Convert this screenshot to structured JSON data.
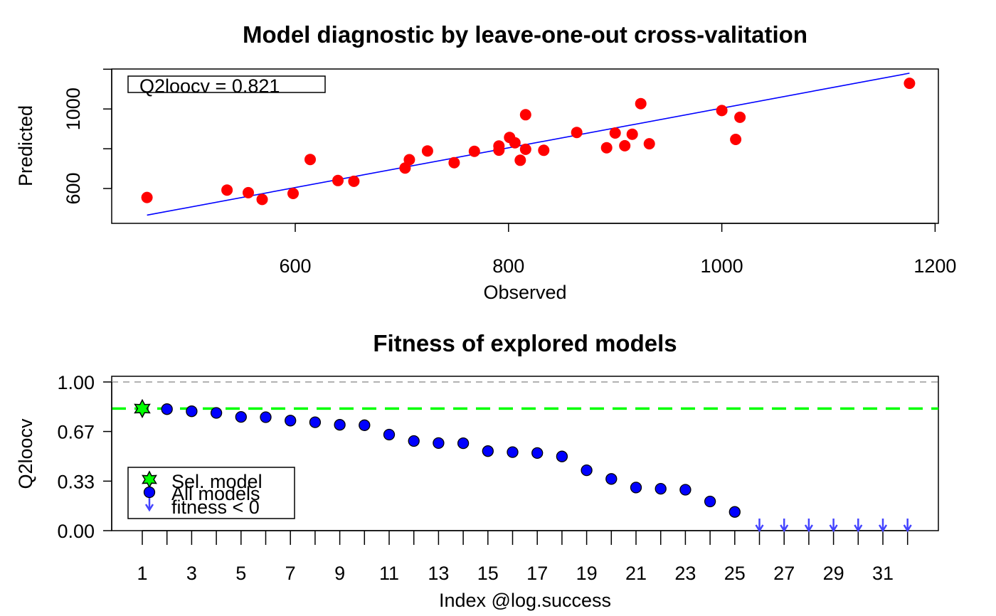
{
  "colors": {
    "points1": "#ff0000",
    "fit_line": "#0000ff",
    "all_models": "#0000ff",
    "selected": "#00ff00",
    "threshold": "#00ff00",
    "reference": "#999999",
    "negative": "#4444ff"
  },
  "chart_data": [
    {
      "type": "scatter",
      "title": "Model diagnostic by leave-one-out cross-valitation",
      "xlabel": "Observed",
      "ylabel": "Predicted",
      "xlim": [
        445,
        1210
      ],
      "ylim": [
        420,
        1210
      ],
      "xticks": [
        600,
        800,
        1000,
        1200
      ],
      "yticks": [
        600,
        800,
        1000,
        1200
      ],
      "ytick_labels": [
        "600",
        "",
        "1000",
        ""
      ],
      "annotation": "Q2loocv = 0.821",
      "series": [
        {
          "points": [
            [
              461,
              555
            ],
            [
              536,
              592
            ],
            [
              556,
              579
            ],
            [
              569,
              545
            ],
            [
              598,
              575
            ],
            [
              614,
              746
            ],
            [
              640,
              640
            ],
            [
              655,
              636
            ],
            [
              703,
              703
            ],
            [
              707,
              745
            ],
            [
              724,
              789
            ],
            [
              749,
              730
            ],
            [
              768,
              787
            ],
            [
              791,
              793
            ],
            [
              791,
              814
            ],
            [
              801,
              857
            ],
            [
              806,
              830
            ],
            [
              811,
              742
            ],
            [
              816,
              797
            ],
            [
              816,
              971
            ],
            [
              833,
              792
            ],
            [
              864,
              882
            ],
            [
              892,
              805
            ],
            [
              900,
              879
            ],
            [
              909,
              815
            ],
            [
              916,
              873
            ],
            [
              924,
              1027
            ],
            [
              932,
              825
            ],
            [
              1000,
              992
            ],
            [
              1013,
              847
            ],
            [
              1017,
              958
            ],
            [
              1176,
              1129
            ]
          ]
        }
      ],
      "fit_line": {
        "x": [
          461,
          1176
        ],
        "y": [
          466,
          1180
        ]
      }
    },
    {
      "type": "scatter",
      "title": "Fitness of explored models",
      "xlabel": "Index @log.success",
      "ylabel": "Q2loocv",
      "xlim": [
        0,
        33.5
      ],
      "ylim": [
        0,
        1.04
      ],
      "ytick_labels": [
        "0.00",
        "0.33",
        "0.67",
        "1.00"
      ],
      "yticks": [
        0,
        0.333,
        0.667,
        1.0
      ],
      "xticks_major": [
        1,
        3,
        5,
        7,
        9,
        11,
        13,
        15,
        17,
        19,
        21,
        23,
        25,
        27,
        29,
        31
      ],
      "xticks_minor": [
        1,
        2,
        3,
        4,
        5,
        6,
        7,
        8,
        9,
        10,
        11,
        12,
        13,
        14,
        15,
        16,
        17,
        18,
        19,
        20,
        21,
        22,
        23,
        24,
        25,
        26,
        27,
        28,
        29,
        30,
        31,
        32
      ],
      "reference_line": 1.0,
      "threshold_line": 0.821,
      "selected": {
        "index": 1,
        "value": 0.821
      },
      "series": [
        {
          "indices": [
            2,
            3,
            4,
            5,
            6,
            7,
            8,
            9,
            10,
            11,
            12,
            13,
            14,
            15,
            16,
            17,
            18,
            19,
            20,
            21,
            22,
            23,
            24,
            25
          ],
          "values": [
            0.817,
            0.803,
            0.792,
            0.765,
            0.763,
            0.74,
            0.729,
            0.712,
            0.709,
            0.646,
            0.603,
            0.589,
            0.588,
            0.535,
            0.528,
            0.522,
            0.499,
            0.406,
            0.348,
            0.29,
            0.282,
            0.275,
            0.196,
            0.126
          ]
        }
      ],
      "negative_indices": [
        26,
        27,
        28,
        29,
        30,
        31,
        32
      ],
      "legend": {
        "position": "bottom-left",
        "items": [
          "Sel. model",
          "All models",
          "fitness < 0"
        ]
      }
    }
  ]
}
